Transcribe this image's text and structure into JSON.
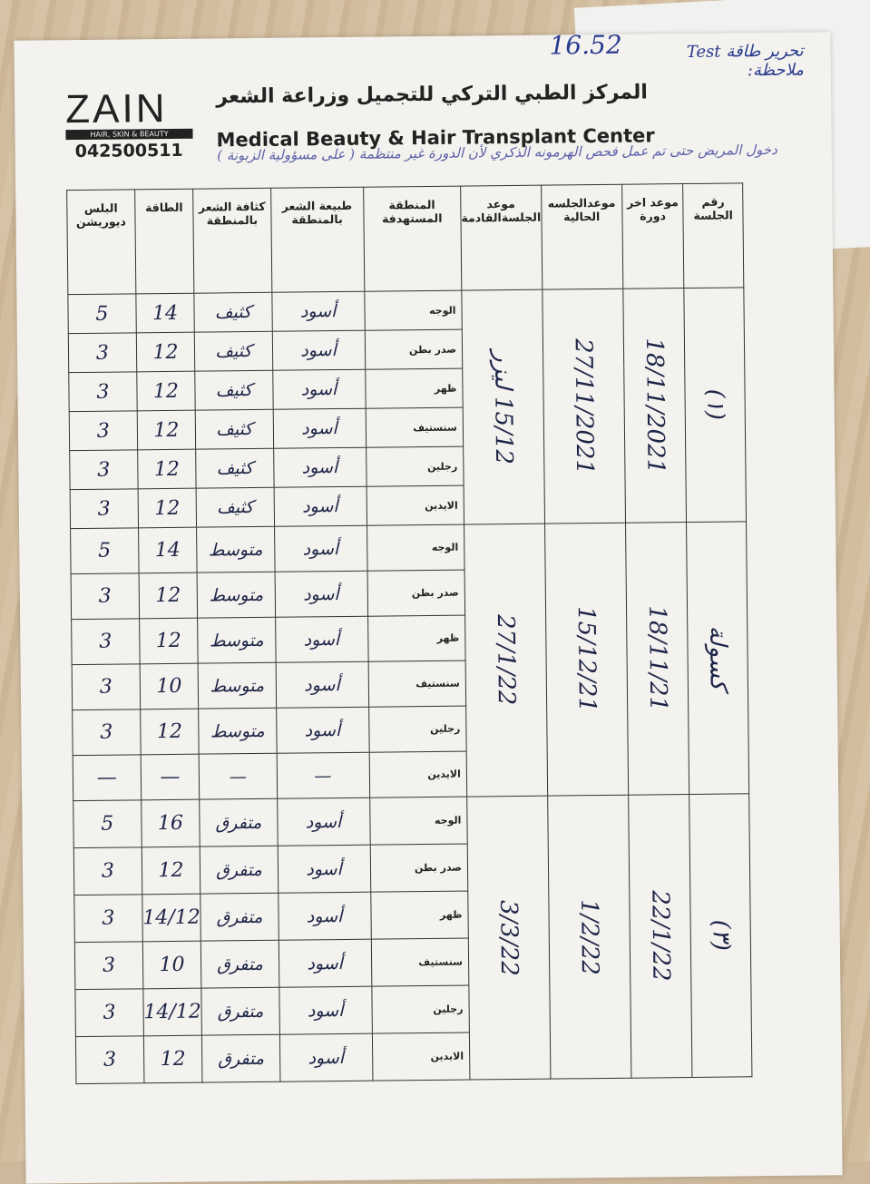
{
  "header": {
    "logo": "ZAIN",
    "logo_tagline": "HAIR, SKIN & BEAUTY",
    "phone": "042500511",
    "title_ar": "المركز الطبي التركي للتجميل وزراعة الشعر",
    "title_en": "Medical Beauty & Hair Transplant Center"
  },
  "annotations": {
    "number": "16.52",
    "side_note": "تحرير طاقة Test ملاحظة:",
    "note": "دخول المريض حتى تم عمل فحص الهرمونه الذكري لأن الدورة غير منتظمة ( على مسؤولية الزبونة )"
  },
  "columns": [
    "رقم الجلسة",
    "موعد اخر دورة",
    "موعدالجلسه الحالية",
    "موعد الجلسةالقادمة",
    "المنطقة المستهدفة",
    "طبيعة الشعر بالمنطقة",
    "كثافة الشعر بالمنطقة",
    "الطاقة",
    "البلس ديوريشن"
  ],
  "groups": [
    {
      "session": "(١)",
      "last_cycle": "18/11/2021",
      "current": "27/11/2021",
      "next": "15/12 ليزر",
      "rows": [
        {
          "area": "الوجه",
          "nature": "أسود",
          "density": "كثيف",
          "energy": "14",
          "pulse": "5"
        },
        {
          "area": "صدر بطن",
          "nature": "أسود",
          "density": "كثيف",
          "energy": "12",
          "pulse": "3"
        },
        {
          "area": "ظهر",
          "nature": "أسود",
          "density": "كثيف",
          "energy": "12",
          "pulse": "3"
        },
        {
          "area": "سنستيف",
          "nature": "أسود",
          "density": "كثيف",
          "energy": "12",
          "pulse": "3"
        },
        {
          "area": "رجلين",
          "nature": "أسود",
          "density": "كثيف",
          "energy": "12",
          "pulse": "3"
        },
        {
          "area": "الايدين",
          "nature": "أسود",
          "density": "كثيف",
          "energy": "12",
          "pulse": "3"
        }
      ]
    },
    {
      "session": "كسولة",
      "last_cycle": "18/11/21",
      "current": "15/12/21",
      "next": "27/1/22",
      "rows": [
        {
          "area": "الوجه",
          "nature": "أسود",
          "density": "متوسط",
          "energy": "14",
          "pulse": "5"
        },
        {
          "area": "صدر بطن",
          "nature": "أسود",
          "density": "متوسط",
          "energy": "12",
          "pulse": "3"
        },
        {
          "area": "ظهر",
          "nature": "أسود",
          "density": "متوسط",
          "energy": "12",
          "pulse": "3"
        },
        {
          "area": "سنستيف",
          "nature": "أسود",
          "density": "متوسط",
          "energy": "10",
          "pulse": "3"
        },
        {
          "area": "رجلين",
          "nature": "أسود",
          "density": "متوسط",
          "energy": "12",
          "pulse": "3"
        },
        {
          "area": "الايدين",
          "nature": "—",
          "density": "—",
          "energy": "—",
          "pulse": "—"
        }
      ]
    },
    {
      "session": "(٣)",
      "last_cycle": "22/1/22",
      "current": "1/2/22",
      "next": "3/3/22",
      "rows": [
        {
          "area": "الوجه",
          "nature": "أسود",
          "density": "متفرق",
          "energy": "16",
          "pulse": "5"
        },
        {
          "area": "صدر بطن",
          "nature": "أسود",
          "density": "متفرق",
          "energy": "12",
          "pulse": "3"
        },
        {
          "area": "ظهر",
          "nature": "أسود",
          "density": "متفرق",
          "energy": "14/12",
          "pulse": "3"
        },
        {
          "area": "سنستيف",
          "nature": "أسود",
          "density": "متفرق",
          "energy": "10",
          "pulse": "3"
        },
        {
          "area": "رجلين",
          "nature": "أسود",
          "density": "متفرق",
          "energy": "14/12",
          "pulse": "3"
        },
        {
          "area": "الايدين",
          "nature": "أسود",
          "density": "متفرق",
          "energy": "12",
          "pulse": "3"
        }
      ]
    }
  ]
}
